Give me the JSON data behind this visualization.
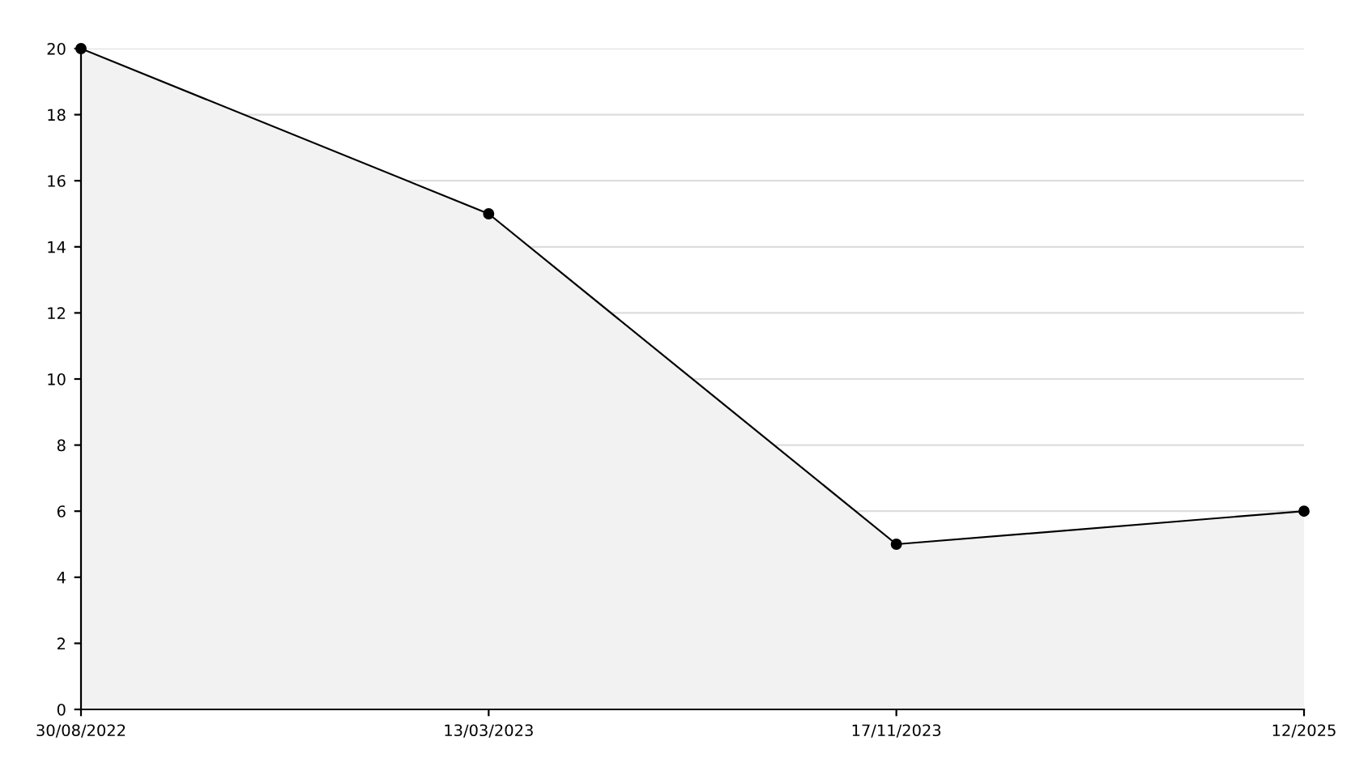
{
  "chart_data": {
    "type": "area",
    "categories": [
      "30/08/2022",
      "13/03/2023",
      "17/11/2023",
      "12/2025"
    ],
    "series": [
      {
        "color": "#000000",
        "values": [
          20,
          15,
          5,
          6
        ]
      }
    ],
    "ylim": [
      0,
      20
    ],
    "yticks": [
      0,
      2,
      4,
      6,
      8,
      10,
      12,
      14,
      16,
      18,
      20
    ],
    "grid": "y",
    "marker": "circle",
    "line_style": "solid"
  }
}
